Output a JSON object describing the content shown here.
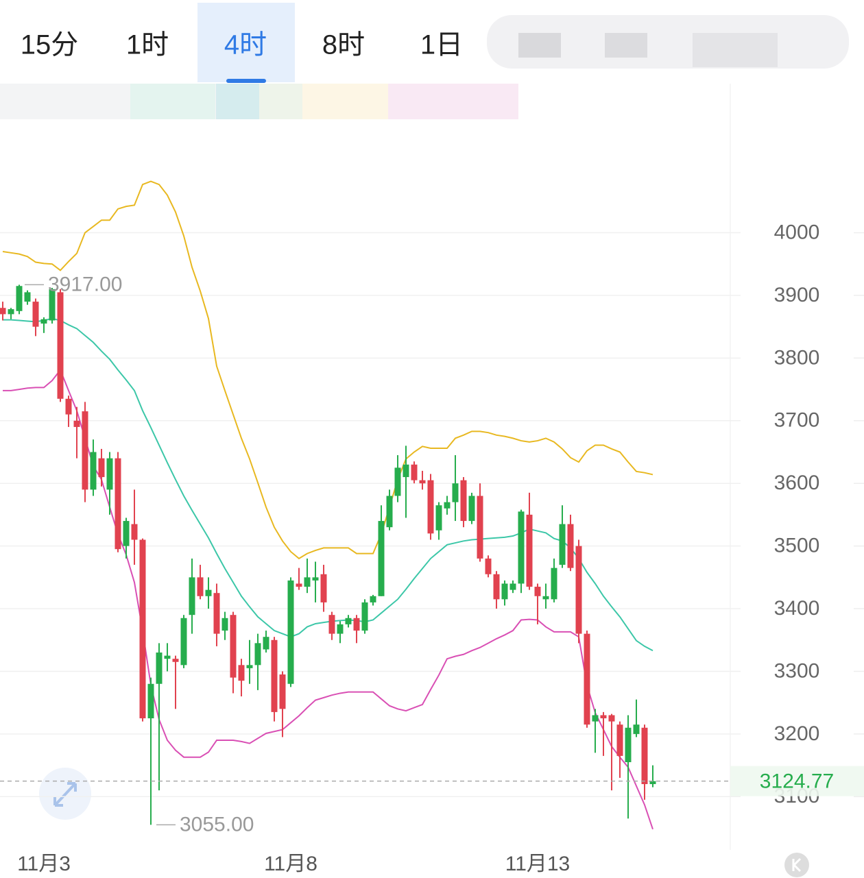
{
  "tabs": {
    "items": [
      "15分",
      "1时",
      "4时",
      "8时",
      "1日"
    ],
    "active": 2
  },
  "chart_data": {
    "type": "candlestick",
    "categories": [
      null,
      null,
      null,
      null,
      null,
      "11月3",
      null,
      null,
      null,
      null,
      null,
      null,
      null,
      null,
      null,
      null,
      null,
      null,
      null,
      null,
      null,
      null,
      null,
      null,
      null,
      null,
      null,
      null,
      null,
      null,
      null,
      null,
      null,
      null,
      null,
      "11月8",
      null,
      null,
      null,
      null,
      null,
      null,
      null,
      null,
      null,
      null,
      null,
      null,
      null,
      null,
      null,
      null,
      null,
      null,
      null,
      null,
      null,
      null,
      null,
      null,
      null,
      null,
      null,
      null,
      null,
      "11月13",
      null,
      null,
      null,
      null,
      null,
      null,
      null,
      null,
      null,
      null,
      null,
      null,
      null,
      null
    ],
    "open": [
      3880,
      3870,
      3875,
      3890,
      3890,
      3855,
      3860,
      3905,
      3735,
      3700,
      3715,
      3590,
      3640,
      3590,
      3640,
      3500,
      3535,
      3510,
      3225,
      3280,
      3320,
      3320,
      3310,
      3390,
      3450,
      3420,
      3425,
      3365,
      3390,
      3310,
      3305,
      3310,
      3335,
      3350,
      3295,
      3280,
      3440,
      3435,
      3445,
      3455,
      3390,
      3360,
      3375,
      3385,
      3365,
      3410,
      3420,
      3530,
      3580,
      3610,
      3630,
      3605,
      3605,
      3525,
      3560,
      3570,
      3605,
      3540,
      3580,
      3480,
      3455,
      3415,
      3430,
      3440,
      3550,
      3435,
      3415,
      3415,
      3470,
      3535,
      3500,
      3360,
      3220,
      3230,
      3230,
      3215,
      3155,
      3200,
      3210,
      3120
    ],
    "high": [
      3890,
      3880,
      3917,
      3908,
      3895,
      3865,
      3912,
      3910,
      3740,
      3722,
      3730,
      3670,
      3655,
      3650,
      3650,
      3545,
      3590,
      3512,
      3290,
      3345,
      3345,
      3325,
      3390,
      3480,
      3470,
      3450,
      3440,
      3395,
      3395,
      3320,
      3350,
      3360,
      3365,
      3355,
      3300,
      3450,
      3465,
      3480,
      3475,
      3470,
      3395,
      3380,
      3390,
      3390,
      3415,
      3422,
      3565,
      3590,
      3645,
      3660,
      3635,
      3620,
      3615,
      3570,
      3580,
      3645,
      3610,
      3585,
      3600,
      3485,
      3460,
      3445,
      3445,
      3558,
      3585,
      3440,
      3440,
      3480,
      3565,
      3550,
      3510,
      3365,
      3240,
      3235,
      3232,
      3220,
      3230,
      3255,
      3215,
      3150
    ],
    "low": [
      3860,
      3862,
      3870,
      3885,
      3835,
      3840,
      3855,
      3730,
      3690,
      3640,
      3570,
      3580,
      3595,
      3550,
      3490,
      3480,
      3470,
      3220,
      3055,
      3110,
      3300,
      3240,
      3305,
      3360,
      3415,
      3400,
      3340,
      3350,
      3265,
      3260,
      3280,
      3270,
      3330,
      3220,
      3195,
      3275,
      3430,
      3425,
      3410,
      3395,
      3350,
      3345,
      3370,
      3345,
      3360,
      3405,
      3420,
      3525,
      3570,
      3545,
      3600,
      3590,
      3510,
      3510,
      3550,
      3540,
      3530,
      3535,
      3475,
      3450,
      3400,
      3405,
      3425,
      3425,
      3430,
      3375,
      3400,
      3410,
      3465,
      3460,
      3345,
      3210,
      3170,
      3165,
      3110,
      3130,
      3065,
      3195,
      3095,
      3115
    ],
    "close": [
      3870,
      3878,
      3915,
      3905,
      3850,
      3862,
      3910,
      3735,
      3710,
      3690,
      3590,
      3650,
      3610,
      3640,
      3495,
      3540,
      3510,
      3225,
      3280,
      3330,
      3325,
      3315,
      3385,
      3450,
      3420,
      3430,
      3360,
      3385,
      3290,
      3285,
      3310,
      3345,
      3355,
      3235,
      3240,
      3445,
      3435,
      3450,
      3450,
      3410,
      3360,
      3375,
      3385,
      3365,
      3410,
      3420,
      3540,
      3580,
      3625,
      3630,
      3605,
      3600,
      3520,
      3565,
      3570,
      3600,
      3540,
      3580,
      3480,
      3455,
      3415,
      3440,
      3440,
      3555,
      3435,
      3420,
      3420,
      3465,
      3535,
      3465,
      3360,
      3215,
      3230,
      3225,
      3220,
      3165,
      3210,
      3215,
      3120,
      3124.77
    ],
    "up_color": "#26ad4d",
    "down_color": "#e1424f",
    "overlays": [
      {
        "color": "#e8b820",
        "values": [
          3970,
          3968,
          3966,
          3962,
          3953,
          3951,
          3950,
          3940,
          3954,
          3967,
          4000,
          4010,
          4020,
          4020,
          4038,
          4042,
          4044,
          4077,
          4082,
          4077,
          4060,
          4033,
          3995,
          3945,
          3907,
          3863,
          3787,
          3748,
          3710,
          3672,
          3639,
          3601,
          3562,
          3530,
          3508,
          3491,
          3480,
          3488,
          3493,
          3497,
          3497,
          3497,
          3497,
          3488,
          3488,
          3488,
          3519,
          3562,
          3606,
          3639,
          3650,
          3659,
          3656,
          3656,
          3656,
          3672,
          3677,
          3683,
          3683,
          3681,
          3677,
          3675,
          3672,
          3668,
          3666,
          3668,
          3672,
          3666,
          3655,
          3641,
          3634,
          3652,
          3661,
          3661,
          3655,
          3650,
          3634,
          3619,
          3617,
          3614
        ]
      },
      {
        "color": "#3cc7a8",
        "values": [
          3861,
          3861,
          3860,
          3859,
          3858,
          3860,
          3863,
          3860,
          3853,
          3847,
          3836,
          3825,
          3811,
          3798,
          3781,
          3765,
          3748,
          3716,
          3689,
          3661,
          3633,
          3606,
          3580,
          3557,
          3535,
          3513,
          3488,
          3464,
          3442,
          3420,
          3403,
          3387,
          3376,
          3365,
          3360,
          3355,
          3360,
          3371,
          3376,
          3378,
          3380,
          3381,
          3382,
          3381,
          3379,
          3382,
          3393,
          3404,
          3415,
          3431,
          3448,
          3464,
          3480,
          3491,
          3502,
          3505,
          3508,
          3510,
          3511,
          3512,
          3513,
          3514,
          3516,
          3521,
          3527,
          3524,
          3521,
          3512,
          3508,
          3497,
          3480,
          3458,
          3440,
          3420,
          3403,
          3387,
          3368,
          3349,
          3340,
          3333
        ]
      },
      {
        "color": "#d94fb4",
        "values": [
          3748,
          3748,
          3750,
          3752,
          3753,
          3753,
          3764,
          3781,
          3748,
          3716,
          3672,
          3628,
          3606,
          3562,
          3519,
          3486,
          3442,
          3365,
          3278,
          3223,
          3190,
          3174,
          3163,
          3163,
          3163,
          3171,
          3190,
          3190,
          3190,
          3188,
          3185,
          3193,
          3201,
          3204,
          3207,
          3218,
          3229,
          3242,
          3254,
          3258,
          3262,
          3265,
          3267,
          3267,
          3267,
          3267,
          3256,
          3245,
          3240,
          3237,
          3242,
          3247,
          3271,
          3294,
          3320,
          3324,
          3327,
          3333,
          3338,
          3345,
          3352,
          3358,
          3365,
          3382,
          3383,
          3382,
          3371,
          3363,
          3363,
          3363,
          3355,
          3278,
          3234,
          3207,
          3180,
          3163,
          3147,
          3117,
          3087,
          3048
        ]
      }
    ],
    "ylim": [
      3015,
      4180
    ],
    "yticks": [
      3100,
      3200,
      3300,
      3400,
      3500,
      3600,
      3700,
      3800,
      3900,
      4000
    ],
    "grid": true,
    "high_mark": {
      "value": 3917,
      "label": "3917.00"
    },
    "low_mark": {
      "value": 3055,
      "label": "3055.00"
    },
    "last_price": 3124.77
  }
}
